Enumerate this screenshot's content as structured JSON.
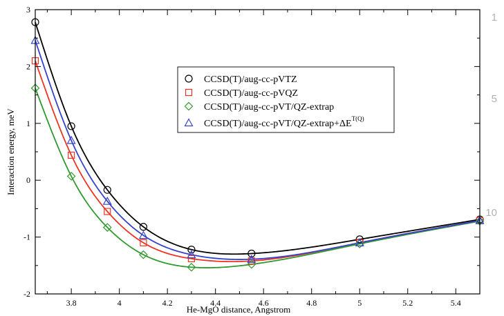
{
  "chart_data": {
    "type": "line",
    "xlabel": "He-MgO distance, Angstrom",
    "ylabel": "Interaction energy, meV",
    "xlim": [
      3.65,
      5.5
    ],
    "ylim": [
      -2,
      3
    ],
    "x_ticks": [
      3.8,
      4,
      4.2,
      4.4,
      4.6,
      4.8,
      5,
      5.2,
      5.4
    ],
    "y_ticks": [
      -2,
      -1,
      0,
      1,
      2,
      3
    ],
    "grid": false,
    "legend_placement": "top-right",
    "series": [
      {
        "name": "CCSD(T)/aug-cc-pVTZ",
        "marker": "circle",
        "color": "#000000",
        "x": [
          3.65,
          3.8,
          3.95,
          4.1,
          4.3,
          4.55,
          5.0,
          5.5
        ],
        "y": [
          2.78,
          0.95,
          -0.17,
          -0.82,
          -1.22,
          -1.29,
          -1.04,
          -0.69
        ]
      },
      {
        "name": "CCSD(T)/aug-cc-pVQZ",
        "marker": "square",
        "color": "#ee3322",
        "x": [
          3.65,
          3.8,
          3.95,
          4.1,
          4.3,
          4.55,
          5.0,
          5.5
        ],
        "y": [
          2.1,
          0.44,
          -0.55,
          -1.1,
          -1.38,
          -1.42,
          -1.1,
          -0.71
        ]
      },
      {
        "name": "CCSD(T)/aug-cc-pVT/QZ-extrap",
        "marker": "diamond",
        "color": "#2e9a2e",
        "x": [
          3.65,
          3.8,
          3.95,
          4.1,
          4.3,
          4.55,
          5.0,
          5.5
        ],
        "y": [
          1.62,
          0.07,
          -0.83,
          -1.31,
          -1.53,
          -1.48,
          -1.12,
          -0.72
        ]
      },
      {
        "name": "CCSD(T)/aug-cc-pVT/QZ-extrap+ΔE",
        "name_sup": "T(Q)",
        "marker": "triangle",
        "color": "#3344cc",
        "x": [
          3.65,
          3.8,
          3.95,
          4.1,
          4.3,
          4.55,
          5.0,
          5.5
        ],
        "y": [
          2.46,
          0.7,
          -0.37,
          -0.97,
          -1.31,
          -1.39,
          -1.1,
          -0.71
        ]
      }
    ]
  },
  "margin_line_numbers": [
    "1",
    "5",
    "10"
  ]
}
